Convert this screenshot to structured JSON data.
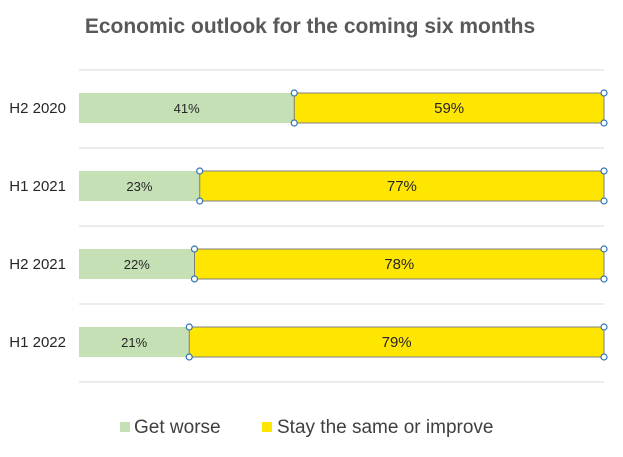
{
  "chart_data": {
    "type": "bar",
    "orientation": "horizontal",
    "stacked": true,
    "title": "Economic outlook for the coming six months",
    "categories": [
      "H2 2020",
      "H1 2021",
      "H2 2021",
      "H1 2022"
    ],
    "series": [
      {
        "name": "Get worse",
        "values": [
          41,
          23,
          22,
          21
        ],
        "labels": [
          "41%",
          "23%",
          "22%",
          "21%"
        ],
        "color": "#c5e0b4"
      },
      {
        "name": "Stay the same or improve",
        "values": [
          59,
          77,
          78,
          79
        ],
        "labels": [
          "59%",
          "77%",
          "78%",
          "79%"
        ],
        "color": "#ffe600"
      }
    ],
    "xlim": [
      0,
      100
    ],
    "grid": true,
    "legend_position": "bottom",
    "selected_series": "Stay the same or improve",
    "selection_color": "#2e75b6"
  }
}
